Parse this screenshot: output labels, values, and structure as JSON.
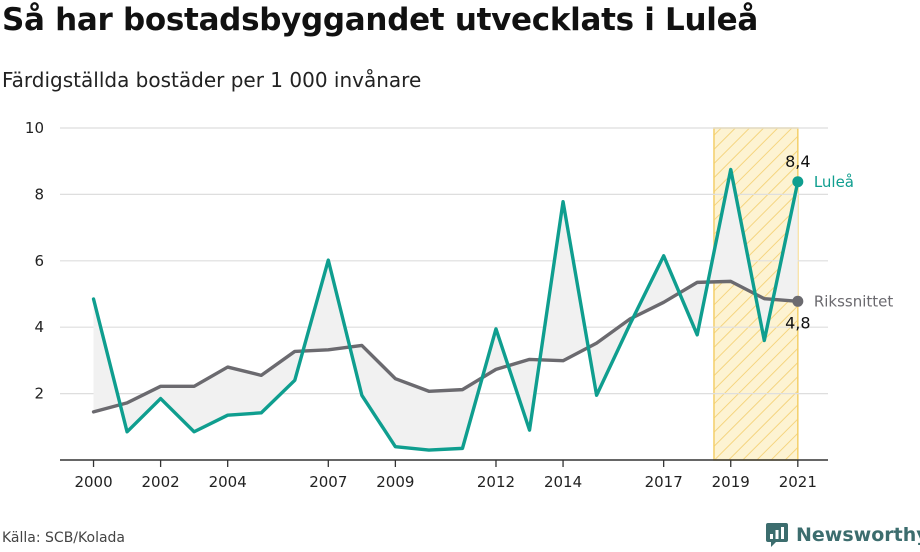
{
  "header": {
    "title": "Så har bostadsbyggandet utvecklats i Luleå",
    "subtitle": "Färdigställda bostäder per 1 000 invånare"
  },
  "footer": {
    "source": "Källa: SCB/Kolada",
    "brand": "Newsworthy"
  },
  "chart_data": {
    "type": "line",
    "title": "",
    "xlabel": "",
    "ylabel": "",
    "ylim": [
      0,
      10
    ],
    "xlim": [
      1999,
      2021.9
    ],
    "yticks": [
      2,
      4,
      6,
      8,
      10
    ],
    "xticks": [
      2000,
      2002,
      2004,
      2007,
      2009,
      2012,
      2014,
      2017,
      2019,
      2021
    ],
    "grid": "horizontal",
    "highlight_range": [
      2018.5,
      2021
    ],
    "x": [
      2000,
      2001,
      2002,
      2003,
      2004,
      2005,
      2006,
      2007,
      2008,
      2009,
      2010,
      2011,
      2012,
      2013,
      2014,
      2015,
      2016,
      2017,
      2018,
      2019,
      2020,
      2021
    ],
    "series": [
      {
        "name": "Luleå",
        "color": "#0f9e8f",
        "end_label": "8,4",
        "values": [
          4.85,
          0.85,
          1.85,
          0.85,
          1.35,
          1.42,
          2.4,
          6.02,
          1.95,
          0.4,
          0.3,
          0.35,
          3.95,
          0.9,
          7.78,
          1.95,
          4.1,
          6.15,
          3.77,
          8.75,
          3.6,
          8.38
        ]
      },
      {
        "name": "Rikssnittet",
        "color": "#6b6a6f",
        "end_label": "4,8",
        "values": [
          1.45,
          1.72,
          2.22,
          2.22,
          2.8,
          2.55,
          3.27,
          3.32,
          3.45,
          2.45,
          2.07,
          2.12,
          2.73,
          3.03,
          2.99,
          3.52,
          4.25,
          4.75,
          5.35,
          5.38,
          4.86,
          4.78
        ]
      }
    ]
  },
  "style": {
    "grid_color": "#dedede",
    "axis_color": "#333333",
    "fill_color": "#f1f1f1",
    "highlight_fill": "#fdf3d2",
    "highlight_stripe": "#f5d580",
    "highlight_border": "#f4cf6a",
    "brand_color": "#3c6d6e"
  }
}
